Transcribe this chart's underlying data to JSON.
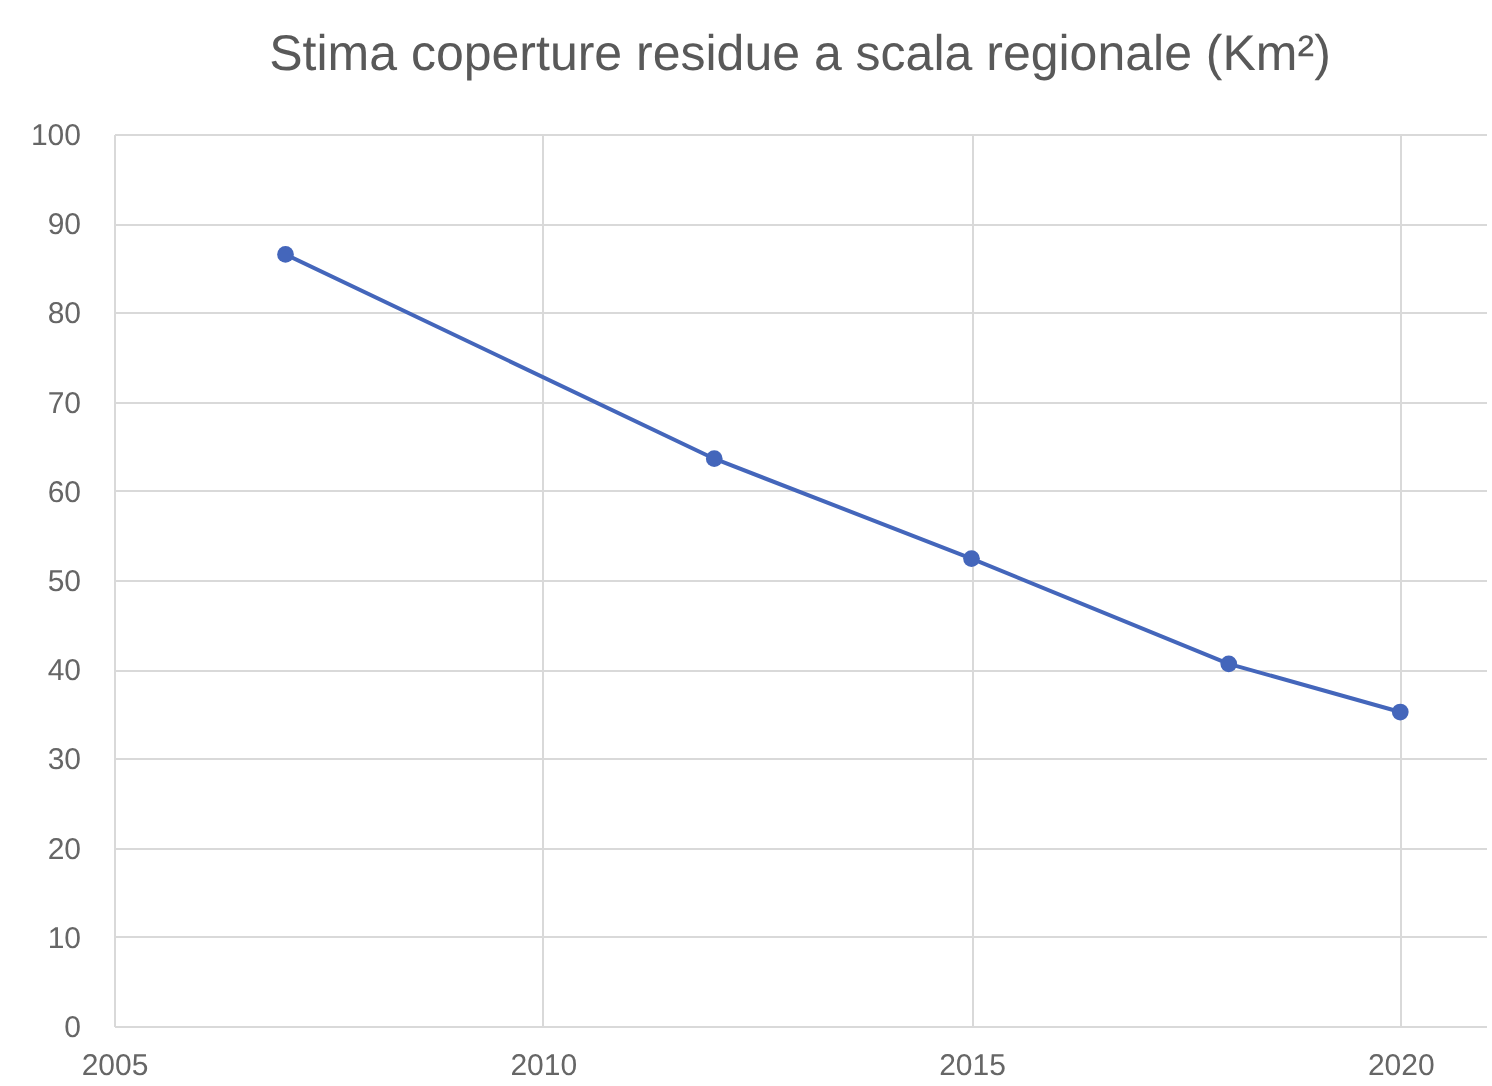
{
  "chart_data": {
    "type": "line",
    "title": "Stima coperture residue a scala regionale (Km²)",
    "x": [
      2007,
      2012,
      2015,
      2018,
      2020
    ],
    "series": [
      {
        "color": "#4466bb",
        "values": [
          86.5,
          63.6,
          52.4,
          40.6,
          35.2
        ]
      }
    ],
    "xlim": [
      2005,
      2021
    ],
    "xticks": [
      2005,
      2010,
      2015,
      2020
    ],
    "ylim": [
      0,
      100
    ],
    "yticks": [
      0,
      10,
      20,
      30,
      40,
      50,
      60,
      70,
      80,
      90,
      100
    ],
    "grid": true,
    "marker": "circle"
  }
}
